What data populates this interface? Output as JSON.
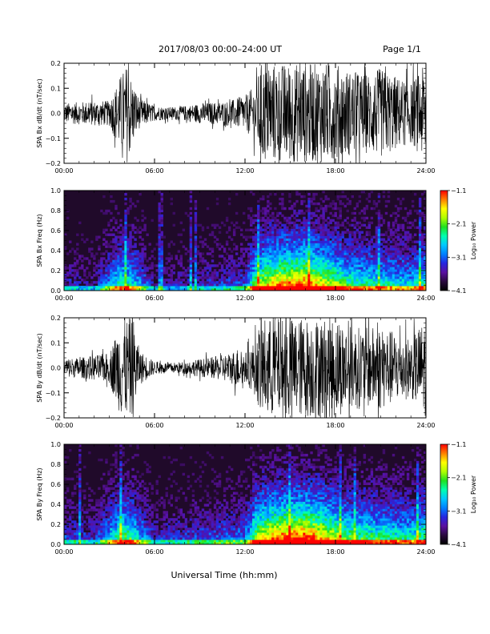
{
  "header": {
    "title": "2017/08/03  00:00–24:00 UT",
    "page_label": "Page 1/1"
  },
  "footer": {
    "xlabel": "Universal Time (hh:mm)"
  },
  "colors": {
    "trace": "#000000",
    "spectrogram_background": "#200a2a",
    "colormap": [
      "#000000",
      "#2a0a3e",
      "#5a10a0",
      "#2626e0",
      "#0080ff",
      "#00c8ff",
      "#00ffb0",
      "#20e020",
      "#b0ff00",
      "#ffff00",
      "#ff8000",
      "#ff0000"
    ]
  },
  "chart_data": [
    {
      "type": "line",
      "ylabel": "SPA Bx dB/dt (nT/sec)",
      "ylim": [
        -0.2,
        0.2
      ],
      "yticks": [
        "0.2",
        "0.1",
        "0.0",
        "−0.1",
        "−0.2"
      ],
      "ytick_values": [
        0.2,
        0.1,
        0.0,
        -0.1,
        -0.2
      ],
      "xlim": [
        0,
        24
      ],
      "xticks": [
        "00:00",
        "06:00",
        "12:00",
        "18:00",
        "24:00"
      ],
      "xtick_values": [
        0,
        6,
        12,
        18,
        24
      ],
      "series": [
        {
          "x": [
            0,
            1,
            2,
            3,
            3.8,
            4.2,
            4.6,
            5,
            6,
            7,
            8,
            9,
            10,
            11,
            12,
            12.8,
            13,
            14,
            15,
            16,
            17,
            18,
            19,
            20,
            21,
            22,
            23,
            24
          ],
          "envelope": [
            0.04,
            0.045,
            0.05,
            0.05,
            0.16,
            0.2,
            0.12,
            0.06,
            0.03,
            0.025,
            0.03,
            0.04,
            0.045,
            0.05,
            0.07,
            0.12,
            0.2,
            0.2,
            0.2,
            0.2,
            0.2,
            0.2,
            0.17,
            0.16,
            0.18,
            0.15,
            0.12,
            0.2
          ]
        }
      ]
    },
    {
      "type": "heatmap",
      "ylabel": "SPA Bx Freq (Hz)",
      "ylim": [
        0.0,
        1.0
      ],
      "yticks": [
        "1.0",
        "0.8",
        "0.6",
        "0.4",
        "0.2",
        "0.0"
      ],
      "ytick_values": [
        1.0,
        0.8,
        0.6,
        0.4,
        0.2,
        0.0
      ],
      "xlim": [
        0,
        24
      ],
      "xticks": [
        "00:00",
        "06:00",
        "12:00",
        "18:00",
        "24:00"
      ],
      "xtick_values": [
        0,
        6,
        12,
        18,
        24
      ],
      "colorbar_label": "Log₁₀ Power",
      "colorbar_range": [
        -4.1,
        -1.1
      ],
      "colorbar_ticks": [
        "−1.1",
        "−2.1",
        "−3.1",
        "−4.1"
      ],
      "colorbar_tick_values": [
        -1.1,
        -2.1,
        -3.1,
        -4.1
      ],
      "activity_x": [
        0,
        2,
        3.8,
        4.5,
        6,
        9,
        12,
        12.8,
        14,
        16,
        17.5,
        19,
        21,
        23,
        24
      ],
      "activity_level": [
        0.3,
        0.25,
        0.6,
        0.55,
        0.25,
        0.3,
        0.35,
        0.7,
        0.85,
        0.9,
        0.75,
        0.6,
        0.55,
        0.5,
        0.6
      ]
    },
    {
      "type": "line",
      "ylabel": "SPA By dB/dt (nT/sec)",
      "ylim": [
        -0.2,
        0.2
      ],
      "yticks": [
        "0.2",
        "0.1",
        "0.0",
        "−0.1",
        "−0.2"
      ],
      "ytick_values": [
        0.2,
        0.1,
        0.0,
        -0.1,
        -0.2
      ],
      "xlim": [
        0,
        24
      ],
      "xticks": [
        "00:00",
        "06:00",
        "12:00",
        "18:00",
        "24:00"
      ],
      "xtick_values": [
        0,
        6,
        12,
        18,
        24
      ],
      "series": [
        {
          "x": [
            0,
            1,
            2,
            3,
            3.8,
            4.2,
            4.6,
            5,
            6,
            7,
            8,
            9,
            10,
            11,
            11.5,
            12,
            12.8,
            13,
            14,
            15,
            16,
            17,
            18,
            19,
            20,
            21,
            22,
            23,
            24
          ],
          "envelope": [
            0.04,
            0.04,
            0.05,
            0.06,
            0.2,
            0.2,
            0.2,
            0.07,
            0.025,
            0.02,
            0.025,
            0.035,
            0.045,
            0.06,
            0.08,
            0.06,
            0.12,
            0.2,
            0.2,
            0.2,
            0.2,
            0.2,
            0.2,
            0.17,
            0.16,
            0.17,
            0.14,
            0.12,
            0.2
          ]
        }
      ]
    },
    {
      "type": "heatmap",
      "ylabel": "SPA By Freq (Hz)",
      "ylim": [
        0.0,
        1.0
      ],
      "yticks": [
        "1.0",
        "0.8",
        "0.6",
        "0.4",
        "0.2",
        "0.0"
      ],
      "ytick_values": [
        1.0,
        0.8,
        0.6,
        0.4,
        0.2,
        0.0
      ],
      "xlim": [
        0,
        24
      ],
      "xticks": [
        "00:00",
        "06:00",
        "12:00",
        "18:00",
        "24:00"
      ],
      "xtick_values": [
        0,
        6,
        12,
        18,
        24
      ],
      "colorbar_label": "Log₁₀ Power",
      "colorbar_range": [
        -4.1,
        -1.1
      ],
      "colorbar_ticks": [
        "−1.1",
        "−2.1",
        "−3.1",
        "−4.1"
      ],
      "colorbar_tick_values": [
        -1.1,
        -2.1,
        -3.1,
        -4.1
      ],
      "activity_x": [
        0,
        2,
        3.8,
        4.5,
        6,
        9,
        12,
        12.8,
        14,
        16,
        17.5,
        19,
        21,
        23,
        24
      ],
      "activity_level": [
        0.35,
        0.3,
        0.65,
        0.6,
        0.3,
        0.35,
        0.4,
        0.75,
        0.9,
        0.95,
        0.8,
        0.65,
        0.6,
        0.55,
        0.65
      ]
    }
  ]
}
